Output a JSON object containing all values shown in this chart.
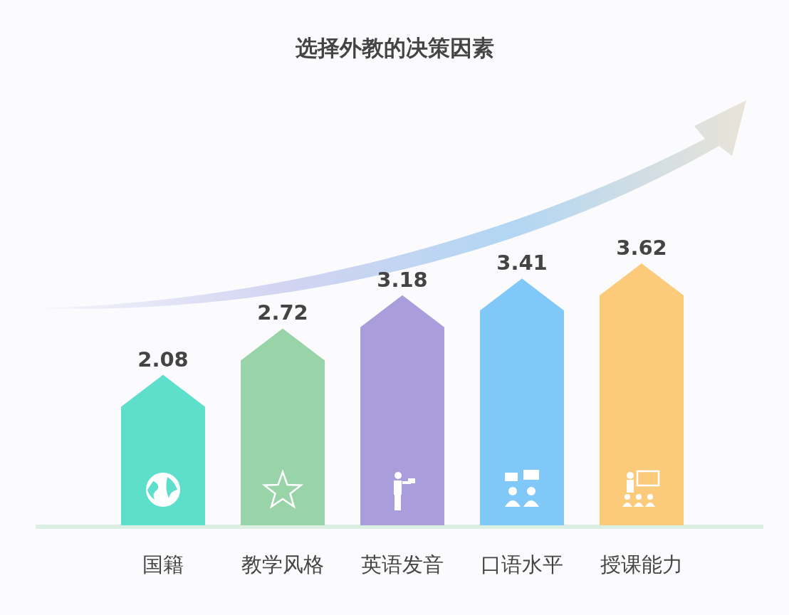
{
  "chart_data": {
    "type": "bar",
    "title": "选择外教的决策因素",
    "categories": [
      "国籍",
      "教学风格",
      "英语发音",
      "口语水平",
      "授课能力"
    ],
    "values": [
      2.08,
      2.72,
      3.18,
      3.41,
      3.62
    ],
    "colors": [
      "#5ddfcb",
      "#99d3a8",
      "#a99ddb",
      "#80c8f8",
      "#fbcb7b"
    ],
    "data_labels": true
  }
}
